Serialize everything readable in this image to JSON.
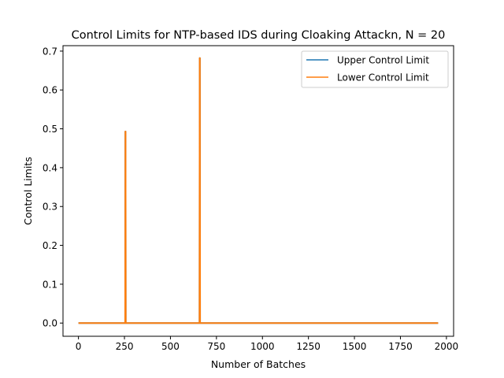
{
  "chart_data": {
    "type": "line",
    "title": "Control Limits for NTP-based IDS during Cloaking Attackn, N = 20",
    "xlabel": "Number of Batches",
    "ylabel": "Control Limits",
    "xlim": [
      -84,
      2039
    ],
    "ylim": [
      -0.034,
      0.714
    ],
    "xticks": [
      0,
      250,
      500,
      750,
      1000,
      1250,
      1500,
      1750,
      2000
    ],
    "xtick_labels": [
      "0",
      "250",
      "500",
      "750",
      "1000",
      "1250",
      "1500",
      "1750",
      "2000"
    ],
    "yticks": [
      0.0,
      0.1,
      0.2,
      0.3,
      0.4,
      0.5,
      0.6,
      0.7
    ],
    "ytick_labels": [
      "0.0",
      "0.1",
      "0.2",
      "0.3",
      "0.4",
      "0.5",
      "0.6",
      "0.7"
    ],
    "grid": false,
    "legend_position": "top-right",
    "series": [
      {
        "name": "Upper Control Limit",
        "color": "#1f77b4",
        "x": [
          0,
          254,
          255,
          256,
          257,
          658,
          659,
          660,
          661,
          1955
        ],
        "y": [
          0,
          0,
          0.493,
          0.493,
          0,
          0,
          0.682,
          0.682,
          0,
          0
        ]
      },
      {
        "name": "Lower Control Limit",
        "color": "#ff7f0e",
        "x": [
          0,
          254,
          255,
          256,
          257,
          658,
          659,
          660,
          661,
          1955
        ],
        "y": [
          0,
          0,
          0.493,
          0.493,
          0,
          0,
          0.682,
          0.682,
          0,
          0
        ]
      }
    ]
  }
}
